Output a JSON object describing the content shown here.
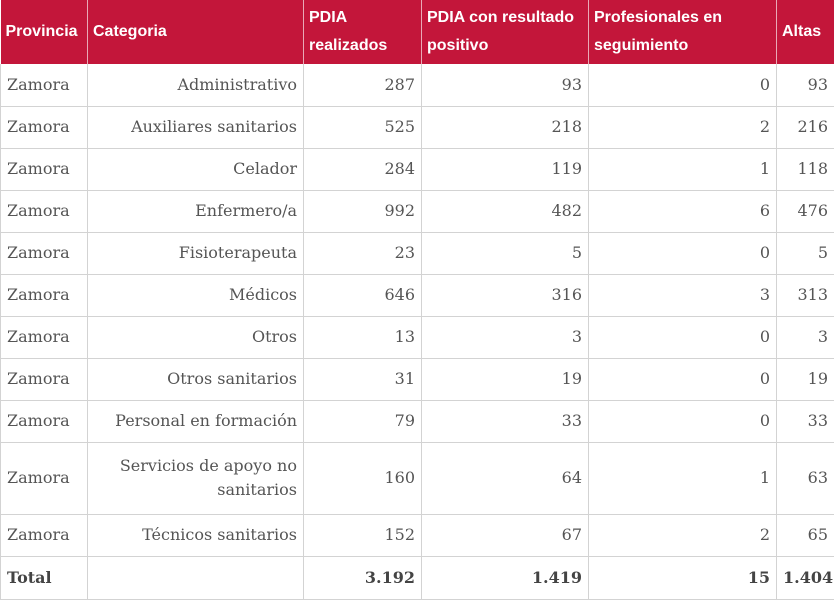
{
  "colors": {
    "header_bg": "#c3163a",
    "header_text": "#ffffff",
    "body_text": "#555555",
    "grid_line": "#d3d3d3"
  },
  "table": {
    "headers": [
      "Provincia",
      "Categoria",
      "PDIA realizados",
      "PDIA con resultado positivo",
      "Profesionales en seguimiento",
      "Altas"
    ],
    "rows": [
      [
        "Zamora",
        "Administrativo",
        "287",
        "93",
        "0",
        "93"
      ],
      [
        "Zamora",
        "Auxiliares sanitarios",
        "525",
        "218",
        "2",
        "216"
      ],
      [
        "Zamora",
        "Celador",
        "284",
        "119",
        "1",
        "118"
      ],
      [
        "Zamora",
        "Enfermero/a",
        "992",
        "482",
        "6",
        "476"
      ],
      [
        "Zamora",
        "Fisioterapeuta",
        "23",
        "5",
        "0",
        "5"
      ],
      [
        "Zamora",
        "Médicos",
        "646",
        "316",
        "3",
        "313"
      ],
      [
        "Zamora",
        "Otros",
        "13",
        "3",
        "0",
        "3"
      ],
      [
        "Zamora",
        "Otros sanitarios",
        "31",
        "19",
        "0",
        "19"
      ],
      [
        "Zamora",
        "Personal en formación",
        "79",
        "33",
        "0",
        "33"
      ],
      [
        "Zamora",
        "Servicios de apoyo no sanitarios",
        "160",
        "64",
        "1",
        "63"
      ],
      [
        "Zamora",
        "Técnicos sanitarios",
        "152",
        "67",
        "2",
        "65"
      ]
    ],
    "total": [
      "Total",
      "",
      "3.192",
      "1.419",
      "15",
      "1.404"
    ]
  }
}
